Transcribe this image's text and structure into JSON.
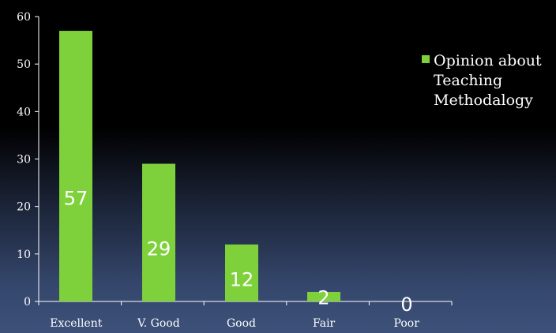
{
  "chart_data": {
    "type": "bar",
    "categories": [
      "Excellent",
      "V. Good",
      "Good",
      "Fair",
      "Poor"
    ],
    "series": [
      {
        "name": "Opinion about Teaching Methodalogy",
        "values": [
          57,
          29,
          12,
          2,
          0
        ]
      }
    ],
    "data_labels": [
      "57",
      "29",
      "12",
      "2",
      "0"
    ],
    "yticks": [
      "0",
      "10",
      "20",
      "30",
      "40",
      "50",
      "60"
    ],
    "ylim": [
      0,
      60
    ],
    "legend": {
      "position": "right",
      "lines": [
        "Opinion about",
        "Teaching",
        "Methodalogy"
      ]
    },
    "grid": false,
    "colors": {
      "bar": "#7fd13b",
      "axis": "#ffffff",
      "text": "#ffffff"
    }
  }
}
